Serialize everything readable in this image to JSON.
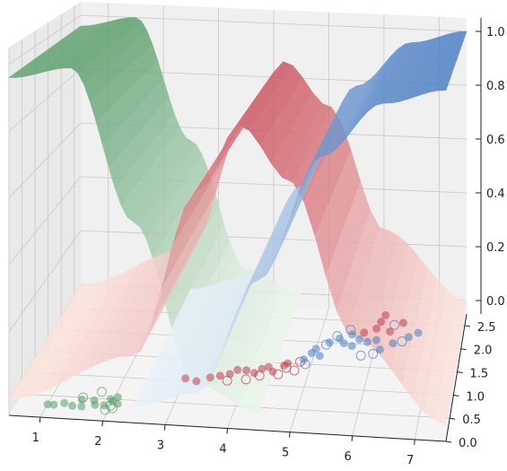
{
  "chart_data": {
    "type": "surface3d",
    "title": "",
    "xlabel": "",
    "ylabel": "",
    "zlabel": "",
    "xlim": [
      0.5,
      7.5
    ],
    "ylim": [
      0,
      2.75
    ],
    "zlim": [
      -0.05,
      1.05
    ],
    "x_ticks": [
      1,
      2,
      3,
      4,
      5,
      6,
      7
    ],
    "y_ticks": [
      0.0,
      0.5,
      1.0,
      1.5,
      2.0,
      2.5
    ],
    "z_ticks": [
      0.0,
      0.2,
      0.4,
      0.6,
      0.8,
      1.0
    ],
    "x_tick_labels": [
      "1",
      "2",
      "3",
      "4",
      "5",
      "6",
      "7"
    ],
    "y_tick_labels": [
      "0.0",
      "0.5",
      "1.0",
      "1.5",
      "2.0",
      "2.5"
    ],
    "z_tick_labels": [
      "0.0",
      "0.2",
      "0.4",
      "0.6",
      "0.8",
      "1.0"
    ],
    "grid": true,
    "legend": "none",
    "series": [
      {
        "color": "#5a9e6a",
        "light_color": "#e9f5ea",
        "surface_profile": {
          "x": [
            0.5,
            1.5,
            2.5,
            3.5,
            4.5
          ],
          "z": [
            0.96,
            1.0,
            0.55,
            0.08,
            0.0
          ]
        },
        "points_filled": [
          [
            1.0,
            0.3
          ],
          [
            1.1,
            0.3
          ],
          [
            1.25,
            0.35
          ],
          [
            1.4,
            0.3
          ],
          [
            1.5,
            0.45
          ],
          [
            1.55,
            0.3
          ],
          [
            1.7,
            0.45
          ],
          [
            1.75,
            0.35
          ],
          [
            1.9,
            0.35
          ],
          [
            1.95,
            0.5
          ],
          [
            2.0,
            0.45
          ],
          [
            2.05,
            0.55
          ],
          [
            2.1,
            0.4
          ]
        ],
        "points_open": [
          [
            1.5,
            0.5
          ],
          [
            1.75,
            0.65
          ],
          [
            1.95,
            0.25
          ],
          [
            2.0,
            0.35
          ],
          [
            2.05,
            0.3
          ]
        ]
      },
      {
        "color": "#c43c4a",
        "light_color": "#fde4dc",
        "surface_profile": {
          "x": [
            0.5,
            2.5,
            3.5,
            4.2,
            5.0,
            6.0,
            7.5
          ],
          "z": [
            0.0,
            0.15,
            0.65,
            0.86,
            0.7,
            0.25,
            0.0
          ]
        },
        "points_filled": [
          [
            3.0,
            1.05
          ],
          [
            3.2,
            1.0
          ],
          [
            3.4,
            1.1
          ],
          [
            3.55,
            1.15
          ],
          [
            3.7,
            1.2
          ],
          [
            3.8,
            1.3
          ],
          [
            3.95,
            1.3
          ],
          [
            4.1,
            1.25
          ],
          [
            4.2,
            1.35
          ],
          [
            4.3,
            1.4
          ],
          [
            4.4,
            1.3
          ],
          [
            4.55,
            1.45
          ],
          [
            4.6,
            1.5
          ],
          [
            5.75,
            2.25
          ],
          [
            5.95,
            2.35
          ],
          [
            6.0,
            2.5
          ],
          [
            6.05,
            2.65
          ],
          [
            6.2,
            2.3
          ],
          [
            6.4,
            2.5
          ]
        ],
        "points_open": [
          [
            3.7,
            1.05
          ],
          [
            4.0,
            1.1
          ],
          [
            4.2,
            1.2
          ],
          [
            4.5,
            1.25
          ],
          [
            4.6,
            1.4
          ],
          [
            4.75,
            1.35
          ],
          [
            4.8,
            1.55
          ]
        ]
      },
      {
        "color": "#4a7ec4",
        "light_color": "#e8f2fa",
        "surface_profile": {
          "x": [
            2.5,
            3.5,
            4.5,
            5.5,
            6.5,
            7.5
          ],
          "z": [
            0.0,
            0.05,
            0.4,
            0.78,
            0.95,
            1.0
          ]
        },
        "points_filled": [
          [
            4.85,
            1.6
          ],
          [
            4.95,
            1.75
          ],
          [
            5.0,
            1.85
          ],
          [
            5.1,
            1.7
          ],
          [
            5.2,
            2.0
          ],
          [
            5.35,
            2.1
          ],
          [
            5.45,
            2.0
          ],
          [
            5.55,
            2.2
          ],
          [
            5.6,
            1.95
          ],
          [
            5.7,
            2.1
          ],
          [
            5.85,
            2.05
          ],
          [
            6.0,
            2.1
          ],
          [
            6.1,
            1.9
          ],
          [
            6.3,
            2.05
          ],
          [
            6.55,
            2.2
          ],
          [
            6.7,
            2.3
          ]
        ],
        "points_open": [
          [
            4.9,
            1.5
          ],
          [
            5.15,
            1.95
          ],
          [
            5.3,
            2.15
          ],
          [
            5.5,
            2.3
          ],
          [
            5.8,
            1.75
          ],
          [
            6.0,
            1.8
          ],
          [
            6.25,
            2.45
          ],
          [
            6.45,
            2.1
          ]
        ]
      }
    ]
  }
}
